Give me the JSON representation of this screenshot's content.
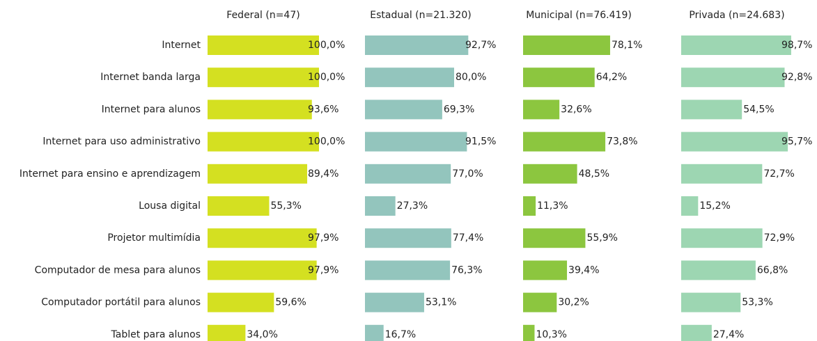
{
  "chart_data": {
    "type": "bar",
    "orientation": "horizontal",
    "xlim": [
      0,
      100
    ],
    "categories": [
      "Internet",
      "Internet banda larga",
      "Internet para alunos",
      "Internet para uso administrativo",
      "Internet para ensino e aprendizagem",
      "Lousa digital",
      "Projetor multimídia",
      "Computador de mesa para alunos",
      "Computador portátil para alunos",
      "Tablet para alunos"
    ],
    "series": [
      {
        "name": "Federal (n=47)",
        "color": "#d4e021",
        "values": [
          100,
          100,
          93.6,
          100,
          89.4,
          55.3,
          97.9,
          97.9,
          59.6,
          34
        ],
        "value_labels": [
          "100,0%",
          "100,0%",
          "93,6%",
          "100,0%",
          "89,4%",
          "55,3%",
          "97,9%",
          "97,9%",
          "59,6%",
          "34,0%"
        ]
      },
      {
        "name": "Estadual (n=21.320)",
        "color": "#93c5bd",
        "values": [
          92.7,
          80,
          69.3,
          91.5,
          77,
          27.3,
          77.4,
          76.3,
          53.1,
          16.7
        ],
        "value_labels": [
          "92,7%",
          "80,0%",
          "69,3%",
          "91,5%",
          "77,0%",
          "27,3%",
          "77,4%",
          "76,3%",
          "53,1%",
          "16,7%"
        ]
      },
      {
        "name": "Municipal (n=76.419)",
        "color": "#8cc63f",
        "values": [
          78.1,
          64.2,
          32.6,
          73.8,
          48.5,
          11.3,
          55.9,
          39.4,
          30.2,
          10.3
        ],
        "value_labels": [
          "78,1%",
          "64,2%",
          "32,6%",
          "73,8%",
          "48,5%",
          "11,3%",
          "55,9%",
          "39,4%",
          "30,2%",
          "10,3%"
        ]
      },
      {
        "name": "Privada (n=24.683)",
        "color": "#9dd6b2",
        "values": [
          98.7,
          92.8,
          54.5,
          95.7,
          72.7,
          15.2,
          72.9,
          66.8,
          53.3,
          27.4
        ],
        "value_labels": [
          "98,7%",
          "92,8%",
          "54,5%",
          "95,7%",
          "72,7%",
          "15,2%",
          "72,9%",
          "66,8%",
          "53,3%",
          "27,4%"
        ]
      }
    ]
  }
}
